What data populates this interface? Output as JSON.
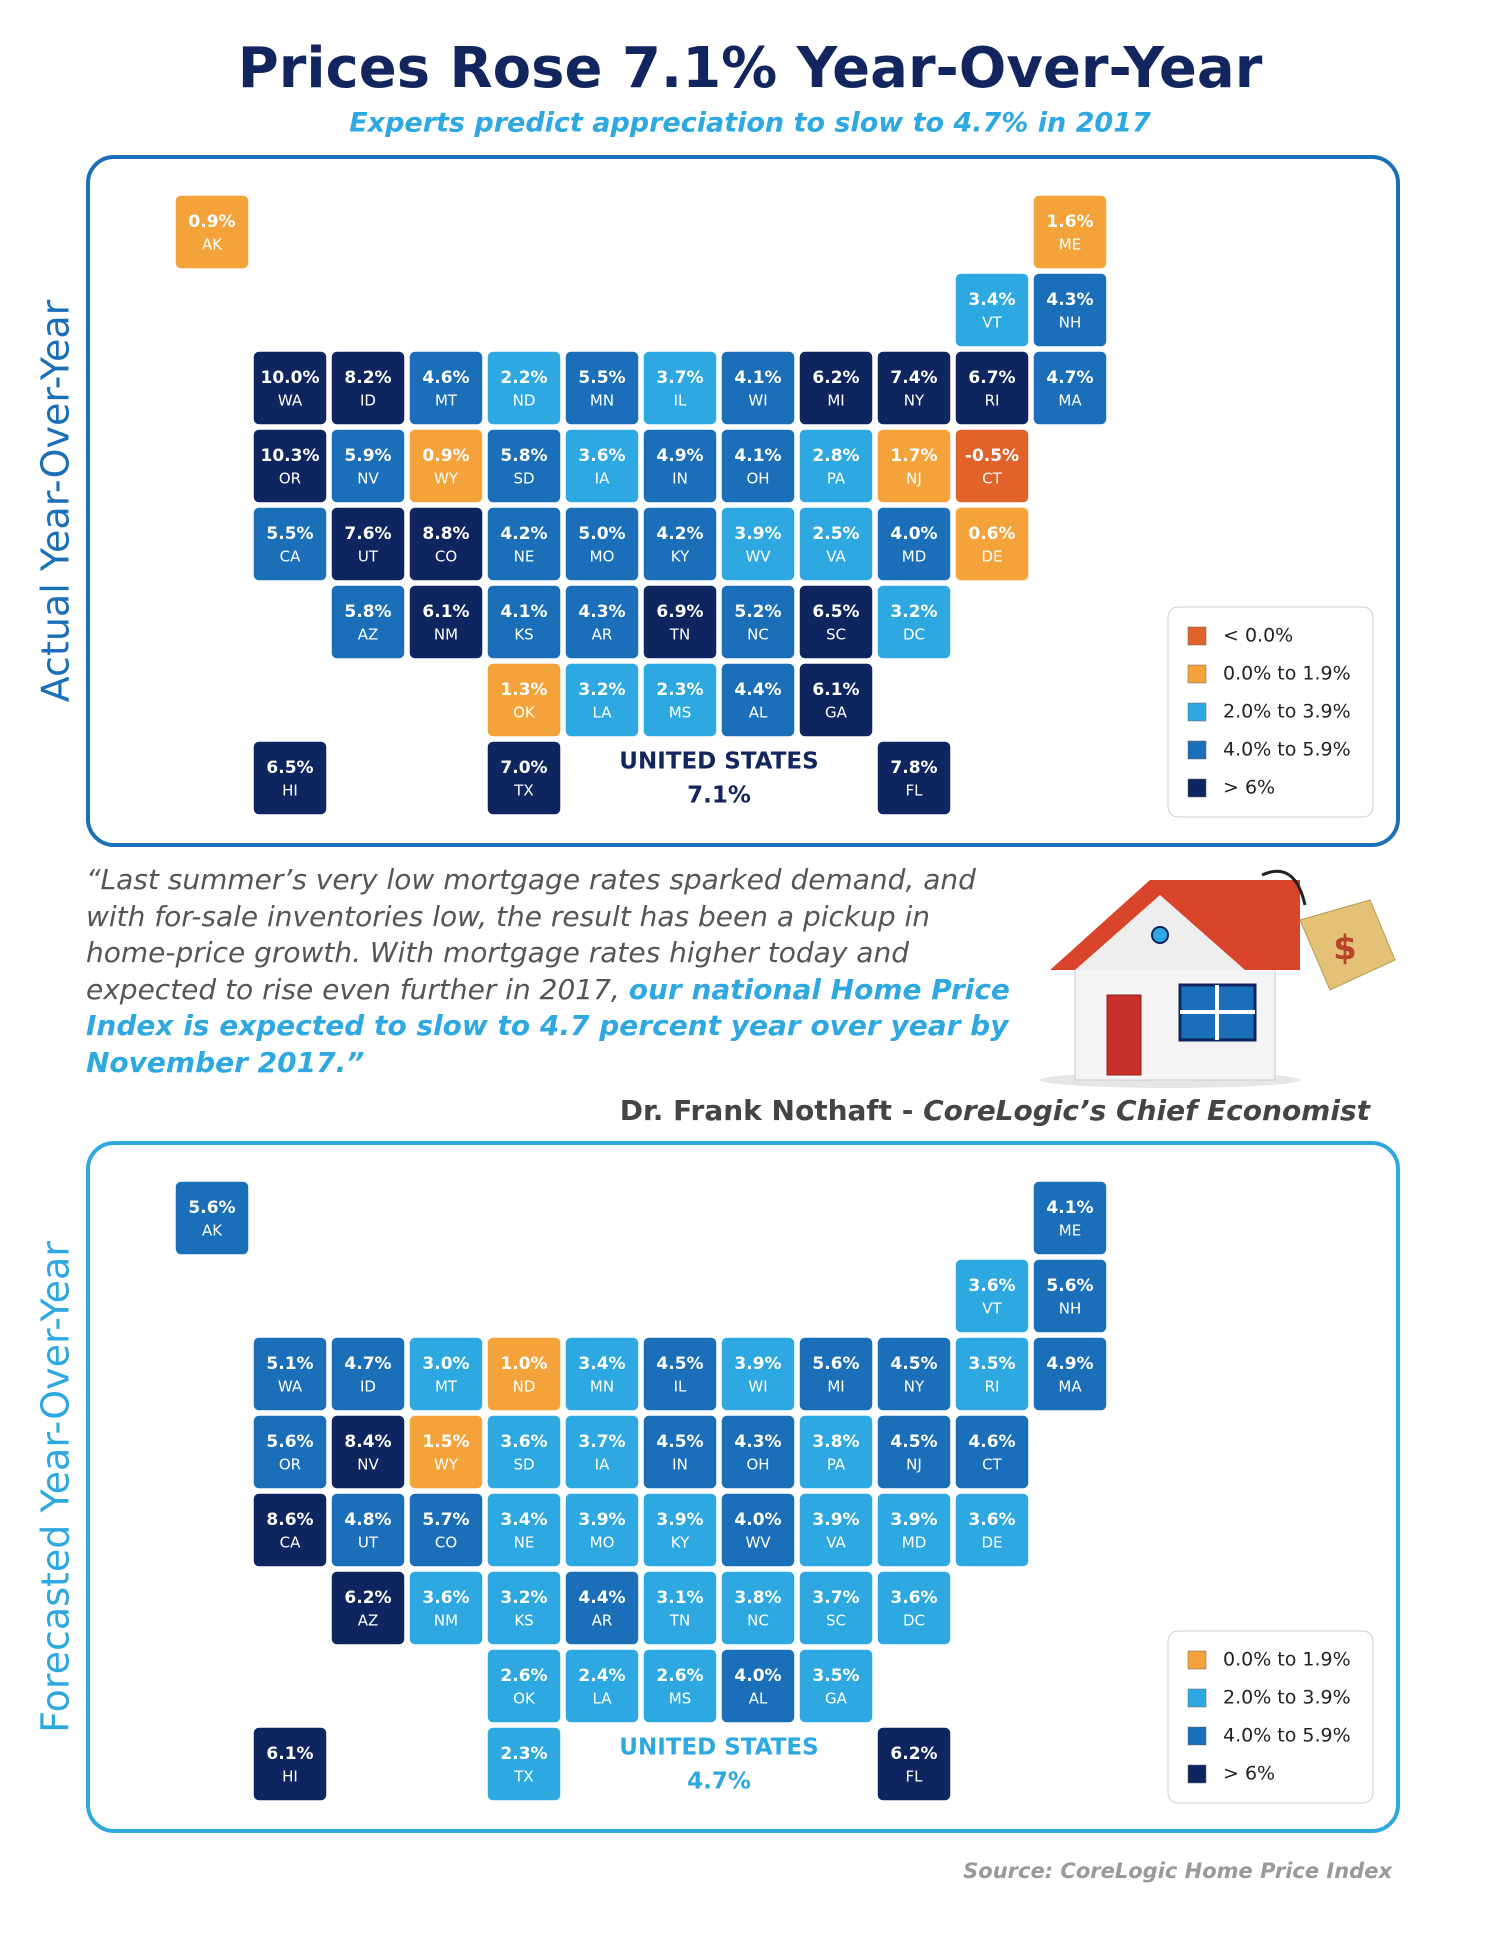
{
  "header": {
    "title": "Prices Rose 7.1% Year-Over-Year",
    "subtitle": "Experts predict appreciation to slow to 4.7% in 2017"
  },
  "maps": [
    {
      "side_label": "Actual Year-Over-Year",
      "states": [
        {
          "abbr": "AK",
          "value": 0.9,
          "label": "0.9%"
        },
        {
          "abbr": "ME",
          "value": 1.6,
          "label": "1.6%"
        },
        {
          "abbr": "VT",
          "value": 3.4,
          "label": "3.4%"
        },
        {
          "abbr": "NH",
          "value": 4.3,
          "label": "4.3%"
        },
        {
          "abbr": "WA",
          "value": 10.0,
          "label": "10.0%"
        },
        {
          "abbr": "ID",
          "value": 8.2,
          "label": "8.2%"
        },
        {
          "abbr": "MT",
          "value": 4.6,
          "label": "4.6%"
        },
        {
          "abbr": "ND",
          "value": 2.2,
          "label": "2.2%"
        },
        {
          "abbr": "MN",
          "value": 5.5,
          "label": "5.5%"
        },
        {
          "abbr": "IL",
          "value": 3.7,
          "label": "3.7%"
        },
        {
          "abbr": "WI",
          "value": 4.1,
          "label": "4.1%"
        },
        {
          "abbr": "MI",
          "value": 6.2,
          "label": "6.2%"
        },
        {
          "abbr": "NY",
          "value": 7.4,
          "label": "7.4%"
        },
        {
          "abbr": "RI",
          "value": 6.7,
          "label": "6.7%"
        },
        {
          "abbr": "MA",
          "value": 4.7,
          "label": "4.7%"
        },
        {
          "abbr": "OR",
          "value": 10.3,
          "label": "10.3%"
        },
        {
          "abbr": "NV",
          "value": 5.9,
          "label": "5.9%"
        },
        {
          "abbr": "WY",
          "value": 0.9,
          "label": "0.9%"
        },
        {
          "abbr": "SD",
          "value": 5.8,
          "label": "5.8%"
        },
        {
          "abbr": "IA",
          "value": 3.6,
          "label": "3.6%"
        },
        {
          "abbr": "IN",
          "value": 4.9,
          "label": "4.9%"
        },
        {
          "abbr": "OH",
          "value": 4.1,
          "label": "4.1%"
        },
        {
          "abbr": "PA",
          "value": 2.8,
          "label": "2.8%"
        },
        {
          "abbr": "NJ",
          "value": 1.7,
          "label": "1.7%"
        },
        {
          "abbr": "CT",
          "value": -0.5,
          "label": "-0.5%"
        },
        {
          "abbr": "CA",
          "value": 5.5,
          "label": "5.5%"
        },
        {
          "abbr": "UT",
          "value": 7.6,
          "label": "7.6%"
        },
        {
          "abbr": "CO",
          "value": 8.8,
          "label": "8.8%"
        },
        {
          "abbr": "NE",
          "value": 4.2,
          "label": "4.2%"
        },
        {
          "abbr": "MO",
          "value": 5.0,
          "label": "5.0%"
        },
        {
          "abbr": "KY",
          "value": 4.2,
          "label": "4.2%"
        },
        {
          "abbr": "WV",
          "value": 3.9,
          "label": "3.9%"
        },
        {
          "abbr": "VA",
          "value": 2.5,
          "label": "2.5%"
        },
        {
          "abbr": "MD",
          "value": 4.0,
          "label": "4.0%"
        },
        {
          "abbr": "DE",
          "value": 0.6,
          "label": "0.6%"
        },
        {
          "abbr": "AZ",
          "value": 5.8,
          "label": "5.8%"
        },
        {
          "abbr": "NM",
          "value": 6.1,
          "label": "6.1%"
        },
        {
          "abbr": "KS",
          "value": 4.1,
          "label": "4.1%"
        },
        {
          "abbr": "AR",
          "value": 4.3,
          "label": "4.3%"
        },
        {
          "abbr": "TN",
          "value": 6.9,
          "label": "6.9%"
        },
        {
          "abbr": "NC",
          "value": 5.2,
          "label": "5.2%"
        },
        {
          "abbr": "SC",
          "value": 6.5,
          "label": "6.5%"
        },
        {
          "abbr": "DC",
          "value": 3.2,
          "label": "3.2%"
        },
        {
          "abbr": "OK",
          "value": 1.3,
          "label": "1.3%"
        },
        {
          "abbr": "LA",
          "value": 3.2,
          "label": "3.2%"
        },
        {
          "abbr": "MS",
          "value": 2.3,
          "label": "2.3%"
        },
        {
          "abbr": "AL",
          "value": 4.4,
          "label": "4.4%"
        },
        {
          "abbr": "GA",
          "value": 6.1,
          "label": "6.1%"
        },
        {
          "abbr": "HI",
          "value": 6.5,
          "label": "6.5%"
        },
        {
          "abbr": "TX",
          "value": 7.0,
          "label": "7.0%"
        },
        {
          "abbr": "FL",
          "value": 7.8,
          "label": "7.8%"
        }
      ],
      "total": {
        "label": "UNITED STATES",
        "value": "7.1%"
      },
      "legend": [
        {
          "label": "< 0.0%",
          "color": "#e2622b",
          "range": [
            null,
            0.0
          ]
        },
        {
          "label": "0.0% to 1.9%",
          "color": "#f4a23a",
          "range": [
            0.0,
            1.9
          ]
        },
        {
          "label": "2.0% to 3.9%",
          "color": "#2ea8e0",
          "range": [
            2.0,
            3.9
          ]
        },
        {
          "label": "4.0% to 5.9%",
          "color": "#1a6fb8",
          "range": [
            4.0,
            5.9
          ]
        },
        {
          "label": "> 6%",
          "color": "#0f2560",
          "range": [
            6,
            null
          ]
        }
      ]
    },
    {
      "side_label": "Forecasted Year-Over-Year",
      "states": [
        {
          "abbr": "AK",
          "value": 5.6,
          "label": "5.6%"
        },
        {
          "abbr": "ME",
          "value": 4.1,
          "label": "4.1%"
        },
        {
          "abbr": "VT",
          "value": 3.6,
          "label": "3.6%"
        },
        {
          "abbr": "NH",
          "value": 5.6,
          "label": "5.6%"
        },
        {
          "abbr": "WA",
          "value": 5.1,
          "label": "5.1%"
        },
        {
          "abbr": "ID",
          "value": 4.7,
          "label": "4.7%"
        },
        {
          "abbr": "MT",
          "value": 3.0,
          "label": "3.0%"
        },
        {
          "abbr": "ND",
          "value": 1.0,
          "label": "1.0%"
        },
        {
          "abbr": "MN",
          "value": 3.4,
          "label": "3.4%"
        },
        {
          "abbr": "IL",
          "value": 4.5,
          "label": "4.5%"
        },
        {
          "abbr": "WI",
          "value": 3.9,
          "label": "3.9%"
        },
        {
          "abbr": "MI",
          "value": 5.6,
          "label": "5.6%"
        },
        {
          "abbr": "NY",
          "value": 4.5,
          "label": "4.5%"
        },
        {
          "abbr": "RI",
          "value": 3.5,
          "label": "3.5%"
        },
        {
          "abbr": "MA",
          "value": 4.9,
          "label": "4.9%"
        },
        {
          "abbr": "OR",
          "value": 5.6,
          "label": "5.6%"
        },
        {
          "abbr": "NV",
          "value": 8.4,
          "label": "8.4%"
        },
        {
          "abbr": "WY",
          "value": 1.5,
          "label": "1.5%"
        },
        {
          "abbr": "SD",
          "value": 3.6,
          "label": "3.6%"
        },
        {
          "abbr": "IA",
          "value": 3.7,
          "label": "3.7%"
        },
        {
          "abbr": "IN",
          "value": 4.5,
          "label": "4.5%"
        },
        {
          "abbr": "OH",
          "value": 4.3,
          "label": "4.3%"
        },
        {
          "abbr": "PA",
          "value": 3.8,
          "label": "3.8%"
        },
        {
          "abbr": "NJ",
          "value": 4.5,
          "label": "4.5%"
        },
        {
          "abbr": "CT",
          "value": 4.6,
          "label": "4.6%"
        },
        {
          "abbr": "CA",
          "value": 8.6,
          "label": "8.6%"
        },
        {
          "abbr": "UT",
          "value": 4.8,
          "label": "4.8%"
        },
        {
          "abbr": "CO",
          "value": 5.7,
          "label": "5.7%"
        },
        {
          "abbr": "NE",
          "value": 3.4,
          "label": "3.4%"
        },
        {
          "abbr": "MO",
          "value": 3.9,
          "label": "3.9%"
        },
        {
          "abbr": "KY",
          "value": 3.9,
          "label": "3.9%"
        },
        {
          "abbr": "WV",
          "value": 4.0,
          "label": "4.0%"
        },
        {
          "abbr": "VA",
          "value": 3.9,
          "label": "3.9%"
        },
        {
          "abbr": "MD",
          "value": 3.9,
          "label": "3.9%"
        },
        {
          "abbr": "DE",
          "value": 3.6,
          "label": "3.6%"
        },
        {
          "abbr": "AZ",
          "value": 6.2,
          "label": "6.2%"
        },
        {
          "abbr": "NM",
          "value": 3.6,
          "label": "3.6%"
        },
        {
          "abbr": "KS",
          "value": 3.2,
          "label": "3.2%"
        },
        {
          "abbr": "AR",
          "value": 4.4,
          "label": "4.4%"
        },
        {
          "abbr": "TN",
          "value": 3.1,
          "label": "3.1%"
        },
        {
          "abbr": "NC",
          "value": 3.8,
          "label": "3.8%"
        },
        {
          "abbr": "SC",
          "value": 3.7,
          "label": "3.7%"
        },
        {
          "abbr": "DC",
          "value": 3.6,
          "label": "3.6%"
        },
        {
          "abbr": "OK",
          "value": 2.6,
          "label": "2.6%"
        },
        {
          "abbr": "LA",
          "value": 2.4,
          "label": "2.4%"
        },
        {
          "abbr": "MS",
          "value": 2.6,
          "label": "2.6%"
        },
        {
          "abbr": "AL",
          "value": 4.0,
          "label": "4.0%"
        },
        {
          "abbr": "GA",
          "value": 3.5,
          "label": "3.5%"
        },
        {
          "abbr": "HI",
          "value": 6.1,
          "label": "6.1%"
        },
        {
          "abbr": "TX",
          "value": 2.3,
          "label": "2.3%"
        },
        {
          "abbr": "FL",
          "value": 6.2,
          "label": "6.2%"
        }
      ],
      "total": {
        "label": "UNITED STATES",
        "value": "4.7%"
      },
      "legend": [
        {
          "label": "0.0% to 1.9%",
          "color": "#f4a23a",
          "range": [
            0.0,
            1.9
          ]
        },
        {
          "label": "2.0% to 3.9%",
          "color": "#2ea8e0",
          "range": [
            2.0,
            3.9
          ]
        },
        {
          "label": "4.0% to 5.9%",
          "color": "#1a6fb8",
          "range": [
            4.0,
            5.9
          ]
        },
        {
          "label": "> 6%",
          "color": "#0f2560",
          "range": [
            6,
            null
          ]
        }
      ]
    }
  ],
  "quote": {
    "text": "“Last summer’s very low mortgage rates sparked demand, and with for-sale inventories low, the result has been a pickup in home-price growth. With mortgage rates higher today and expected to rise even further in 2017,",
    "highlight": "our national Home Price Index is expected to slow to 4.7 percent year over year by November 2017.”",
    "speaker": "Dr. Frank Nothaft - ",
    "role": "CoreLogic’s Chief Economist"
  },
  "source": "Source: CoreLogic Home Price Index"
}
